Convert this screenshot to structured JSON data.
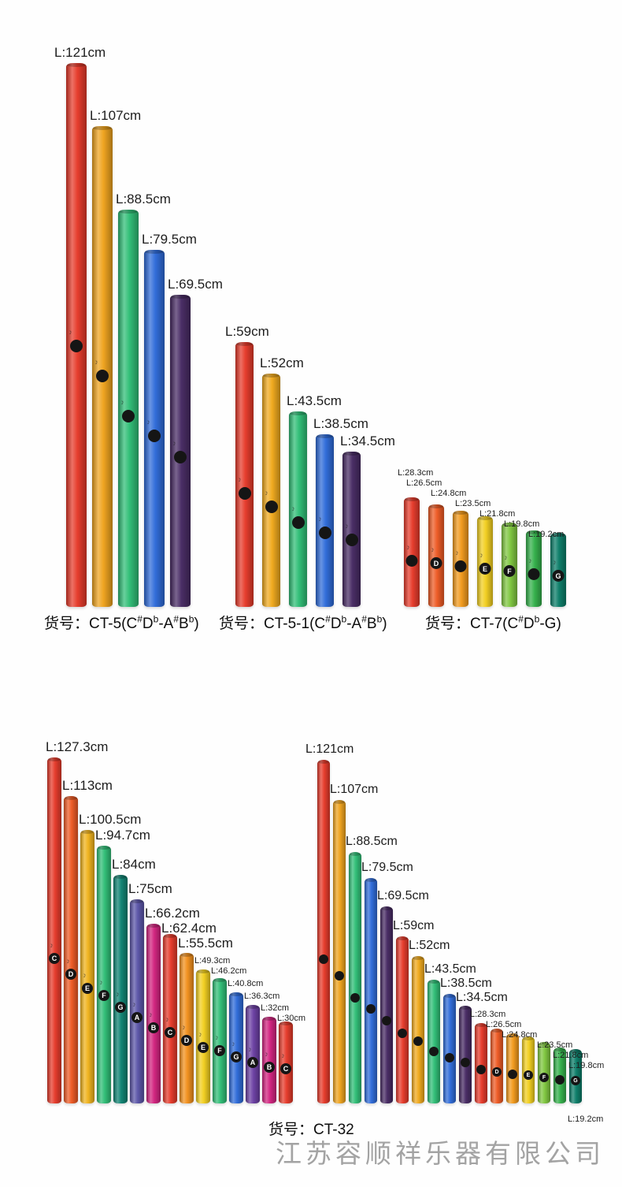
{
  "watermark": "江苏容顺祥乐器有限公司",
  "decor_note": "♪",
  "captions": [
    {
      "name": "CT-5",
      "segments": [
        {
          "t": "货号：CT-5(C"
        },
        {
          "t": "#",
          "sup": true
        },
        {
          "t": "D"
        },
        {
          "t": "b",
          "sup": true
        },
        {
          "t": "-A"
        },
        {
          "t": "#",
          "sup": true
        },
        {
          "t": "B"
        },
        {
          "t": "b",
          "sup": true
        },
        {
          "t": ")"
        }
      ]
    },
    {
      "name": "CT-5-1",
      "segments": [
        {
          "t": "货号：CT-5-1(C"
        },
        {
          "t": "#",
          "sup": true
        },
        {
          "t": "D"
        },
        {
          "t": "b",
          "sup": true
        },
        {
          "t": "-A"
        },
        {
          "t": "#",
          "sup": true
        },
        {
          "t": "B"
        },
        {
          "t": "b",
          "sup": true
        },
        {
          "t": ")"
        }
      ]
    },
    {
      "name": "CT-7",
      "segments": [
        {
          "t": "货号：CT-7(C"
        },
        {
          "t": "#",
          "sup": true
        },
        {
          "t": "D"
        },
        {
          "t": "b",
          "sup": true
        },
        {
          "t": "-G)"
        }
      ]
    },
    {
      "name": "CT-32",
      "segments": [
        {
          "t": "货号：CT-32"
        }
      ]
    }
  ],
  "groups": [
    {
      "name": "CT-5",
      "tubes": [
        {
          "label": "L:121cm",
          "cm": 121,
          "color": "#e63a2a",
          "badge": ""
        },
        {
          "label": "L:107cm",
          "cm": 107,
          "color": "#efa31d",
          "badge": ""
        },
        {
          "label": "L:88.5cm",
          "cm": 88.5,
          "color": "#2fbe76",
          "badge": ""
        },
        {
          "label": "L:79.5cm",
          "cm": 79.5,
          "color": "#2e6bd9",
          "badge": ""
        },
        {
          "label": "L:69.5cm",
          "cm": 69.5,
          "color": "#472a63",
          "badge": ""
        }
      ]
    },
    {
      "name": "CT-5-1",
      "tubes": [
        {
          "label": "L:59cm",
          "cm": 59,
          "color": "#e63a2a",
          "badge": ""
        },
        {
          "label": "L:52cm",
          "cm": 52,
          "color": "#f0a91c",
          "badge": ""
        },
        {
          "label": "L:43.5cm",
          "cm": 43.5,
          "color": "#2fbe76",
          "badge": ""
        },
        {
          "label": "L:38.5cm",
          "cm": 38.5,
          "color": "#2e6bd9",
          "badge": ""
        },
        {
          "label": "L:34.5cm",
          "cm": 34.5,
          "color": "#472a63",
          "badge": ""
        }
      ]
    },
    {
      "name": "CT-7",
      "tubes": [
        {
          "label": "L:28.3cm",
          "cm": 28.3,
          "color": "#e63a2a",
          "badge": ""
        },
        {
          "label": "L:26.5cm",
          "cm": 26.5,
          "color": "#ee5a24",
          "badge": "D"
        },
        {
          "label": "L:24.8cm",
          "cm": 24.8,
          "color": "#f29a1b",
          "badge": ""
        },
        {
          "label": "L:23.5cm",
          "cm": 23.5,
          "color": "#f2cf1f",
          "badge": "E"
        },
        {
          "label": "L:21.8cm",
          "cm": 21.8,
          "color": "#7fc73f",
          "badge": "F"
        },
        {
          "label": "L:19.8cm",
          "cm": 19.8,
          "color": "#33b04a",
          "badge": ""
        },
        {
          "label": "L:19.2cm",
          "cm": 19.2,
          "color": "#0b7d68",
          "badge": "G"
        }
      ]
    },
    {
      "name": "CT-32-left",
      "tubes": [
        {
          "label": "L:127.3cm",
          "cm": 127.3,
          "color": "#e63a2a",
          "badge": "C"
        },
        {
          "label": "L:113cm",
          "cm": 113,
          "color": "#ee5a24",
          "badge": "D"
        },
        {
          "label": "L:100.5cm",
          "cm": 100.5,
          "color": "#f0b31c",
          "badge": "E"
        },
        {
          "label": "L:94.7cm",
          "cm": 94.7,
          "color": "#2fbe76",
          "badge": "F"
        },
        {
          "label": "L:84cm",
          "cm": 84,
          "color": "#0f8372",
          "badge": "G"
        },
        {
          "label": "L:75cm",
          "cm": 75,
          "color": "#5b55a8",
          "badge": "A"
        },
        {
          "label": "L:66.2cm",
          "cm": 66.2,
          "color": "#d2237f",
          "badge": "B"
        },
        {
          "label": "L:62.4cm",
          "cm": 62.4,
          "color": "#e63a2a",
          "badge": "C"
        },
        {
          "label": "L:55.5cm",
          "cm": 55.5,
          "color": "#f2901d",
          "badge": "D"
        },
        {
          "label": "L:49.3cm",
          "cm": 49.3,
          "color": "#f2cf1f",
          "badge": "E"
        },
        {
          "label": "L:46.2cm",
          "cm": 46.2,
          "color": "#2fbe76",
          "badge": "F"
        },
        {
          "label": "L:40.8cm",
          "cm": 40.8,
          "color": "#2e6bd9",
          "badge": "G"
        },
        {
          "label": "L:36.3cm",
          "cm": 36.3,
          "color": "#6b3fa3",
          "badge": "A"
        },
        {
          "label": "L:32cm",
          "cm": 32,
          "color": "#d2237f",
          "badge": "B"
        },
        {
          "label": "L:30cm",
          "cm": 30,
          "color": "#e63a2a",
          "badge": "C"
        }
      ]
    },
    {
      "name": "CT-32-right",
      "tubes": [
        {
          "label": "L:121cm",
          "cm": 121,
          "color": "#e63a2a",
          "badge": ""
        },
        {
          "label": "L:107cm",
          "cm": 107,
          "color": "#efa31d",
          "badge": ""
        },
        {
          "label": "L:88.5cm",
          "cm": 88.5,
          "color": "#2fbe76",
          "badge": ""
        },
        {
          "label": "L:79.5cm",
          "cm": 79.5,
          "color": "#2e6bd9",
          "badge": ""
        },
        {
          "label": "L:69.5cm",
          "cm": 69.5,
          "color": "#472a63",
          "badge": ""
        },
        {
          "label": "L:59cm",
          "cm": 59,
          "color": "#e63a2a",
          "badge": ""
        },
        {
          "label": "L:52cm",
          "cm": 52,
          "color": "#f0a91c",
          "badge": ""
        },
        {
          "label": "L:43.5cm",
          "cm": 43.5,
          "color": "#2fbe76",
          "badge": ""
        },
        {
          "label": "L:38.5cm",
          "cm": 38.5,
          "color": "#2e6bd9",
          "badge": ""
        },
        {
          "label": "L:34.5cm",
          "cm": 34.5,
          "color": "#472a63",
          "badge": ""
        },
        {
          "label": "L:28.3cm",
          "cm": 28.3,
          "color": "#e63a2a",
          "badge": ""
        },
        {
          "label": "L:26.5cm",
          "cm": 26.5,
          "color": "#ee5a24",
          "badge": "D"
        },
        {
          "label": "L:24.8cm",
          "cm": 24.8,
          "color": "#f29a1b",
          "badge": ""
        },
        {
          "label": "L:23.5cm",
          "cm": 23.5,
          "color": "#f2cf1f",
          "badge": "E"
        },
        {
          "label": "L:21.8cm",
          "cm": 21.8,
          "color": "#7fc73f",
          "badge": "F"
        },
        {
          "label": "L:19.8cm",
          "cm": 19.8,
          "color": "#33b04a",
          "badge": ""
        },
        {
          "label": "L:19.2cm",
          "cm": 19.2,
          "color": "#0b7d68",
          "badge": "G"
        }
      ]
    }
  ]
}
